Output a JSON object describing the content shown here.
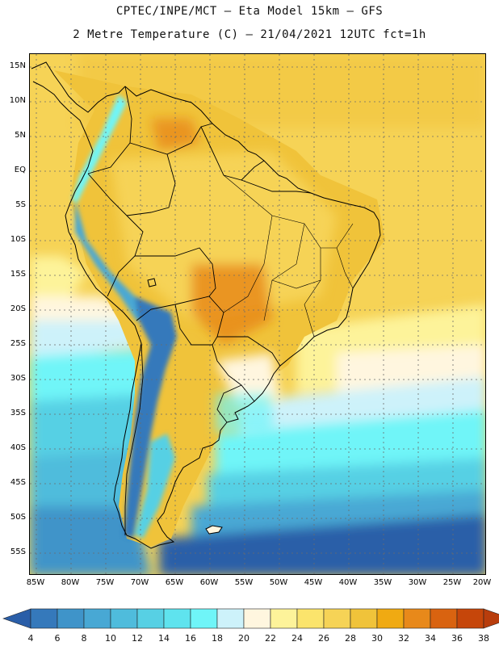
{
  "header": {
    "title_line1": "CPTEC/INPE/MCT –  Eta Model 15km – GFS",
    "title_line2": "2 Metre Temperature (C) – 21/04/2021 12UTC fct=1h"
  },
  "map": {
    "region": "South America",
    "variable": "2 Metre Temperature",
    "units": "C",
    "lat_labels": [
      "15N",
      "10N",
      "5N",
      "EQ",
      "5S",
      "10S",
      "15S",
      "20S",
      "25S",
      "30S",
      "35S",
      "40S",
      "45S",
      "50S",
      "55S"
    ],
    "lon_labels": [
      "85W",
      "80W",
      "75W",
      "70W",
      "65W",
      "60W",
      "55W",
      "50W",
      "45W",
      "40W",
      "35W",
      "30W",
      "25W",
      "20W"
    ]
  },
  "colorbar": {
    "labels": [
      "4",
      "6",
      "8",
      "10",
      "12",
      "14",
      "16",
      "18",
      "20",
      "22",
      "24",
      "26",
      "28",
      "30",
      "32",
      "34",
      "36",
      "38"
    ],
    "colors": [
      "#2a5ea8",
      "#3579bb",
      "#3f94c9",
      "#48a8d4",
      "#4fbcdc",
      "#57d0e4",
      "#5fe3ee",
      "#6ff5f8",
      "#cdf2fa",
      "#fff6df",
      "#fdf39a",
      "#fbe46c",
      "#f6d356",
      "#f0c33a",
      "#f0aa12",
      "#e8891a",
      "#d96310",
      "#c6460a",
      "#b83d0c"
    ]
  }
}
